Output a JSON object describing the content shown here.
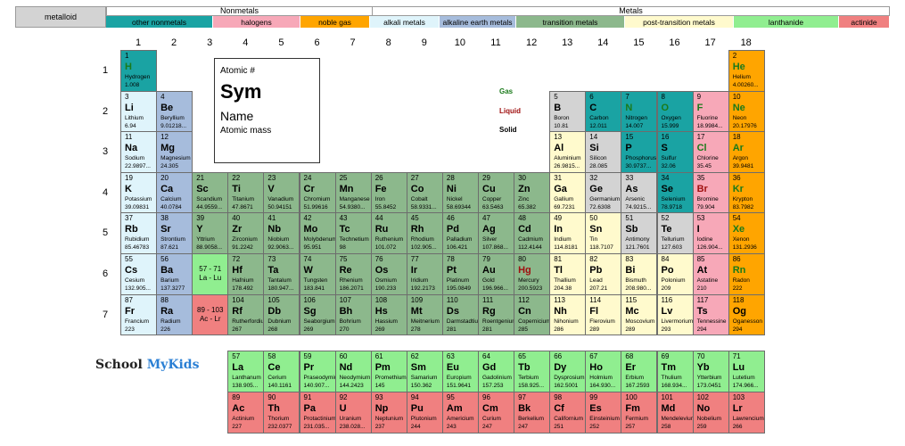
{
  "legend": {
    "metalloid": "metalloid",
    "nonmetals_title": "Nonmetals",
    "metals_title": "Metals",
    "categories": [
      {
        "id": "other-nonmetals",
        "label": "other nonmetals",
        "color": "#1aa3a3"
      },
      {
        "id": "halogens",
        "label": "halogens",
        "color": "#f7a8b8"
      },
      {
        "id": "noble-gas",
        "label": "noble gas",
        "color": "#ffa500"
      },
      {
        "id": "alkali-metals",
        "label": "alkali metals",
        "color": "#dff4fb"
      },
      {
        "id": "alkaline-earth-metals",
        "label": "alkaline earth metals",
        "color": "#a6bcdc"
      },
      {
        "id": "transition-metals",
        "label": "transition metals",
        "color": "#8cb88c"
      },
      {
        "id": "post-transition-metals",
        "label": "post-transition metals",
        "color": "#fffacd"
      },
      {
        "id": "lanthanide",
        "label": "lanthanide",
        "color": "#90ee90"
      },
      {
        "id": "actinide",
        "label": "actinide",
        "color": "#f08080"
      }
    ]
  },
  "colors": {
    "metalloid": "#d3d3d3",
    "nonmetal": "#1aa3a3",
    "halogen": "#f7a8b8",
    "noble": "#ffa500",
    "alkali": "#dff4fb",
    "alkaline": "#a6bcdc",
    "transition": "#8cb88c",
    "post": "#fffacd",
    "lanthanide": "#90ee90",
    "actinide": "#f08080"
  },
  "groups": [
    "1",
    "2",
    "3",
    "4",
    "5",
    "6",
    "7",
    "8",
    "9",
    "10",
    "11",
    "12",
    "13",
    "14",
    "15",
    "16",
    "17",
    "18"
  ],
  "periods": [
    "1",
    "2",
    "3",
    "4",
    "5",
    "6",
    "7"
  ],
  "key": {
    "atomic": "Atomic #",
    "sym": "Sym",
    "name": "Name",
    "mass": "Atomic mass"
  },
  "states": {
    "gas": "Gas",
    "liquid": "Liquid",
    "solid": "Solid"
  },
  "brand": {
    "part1": "School ",
    "part2": "MyKids"
  },
  "ranges": {
    "lanthanides": "57 - 71\nLa - Lu",
    "actinides": "89 - 103\nAc - Lr"
  },
  "elements": [
    {
      "n": "1",
      "s": "H",
      "name": "Hydrogen",
      "m": "1.008",
      "c": "nonmetal",
      "p": "gas",
      "g": 1,
      "r": 1
    },
    {
      "n": "2",
      "s": "He",
      "name": "Helium",
      "m": "4.00260...",
      "c": "noble",
      "p": "gas",
      "g": 18,
      "r": 1
    },
    {
      "n": "3",
      "s": "Li",
      "name": "Lithium",
      "m": "6.94",
      "c": "alkali",
      "g": 1,
      "r": 2
    },
    {
      "n": "4",
      "s": "Be",
      "name": "Beryllium",
      "m": "9.01218...",
      "c": "alkaline",
      "g": 2,
      "r": 2
    },
    {
      "n": "5",
      "s": "B",
      "name": "Boron",
      "m": "10.81",
      "c": "metalloid",
      "g": 13,
      "r": 2
    },
    {
      "n": "6",
      "s": "C",
      "name": "Carbon",
      "m": "12.011",
      "c": "nonmetal",
      "g": 14,
      "r": 2
    },
    {
      "n": "7",
      "s": "N",
      "name": "Nitrogen",
      "m": "14.007",
      "c": "nonmetal",
      "p": "gas",
      "g": 15,
      "r": 2
    },
    {
      "n": "8",
      "s": "O",
      "name": "Oxygen",
      "m": "15.999",
      "c": "nonmetal",
      "p": "gas",
      "g": 16,
      "r": 2
    },
    {
      "n": "9",
      "s": "F",
      "name": "Fluorine",
      "m": "18.9984...",
      "c": "halogen",
      "p": "gas",
      "g": 17,
      "r": 2
    },
    {
      "n": "10",
      "s": "Ne",
      "name": "Neon",
      "m": "20.17976",
      "c": "noble",
      "p": "gas",
      "g": 18,
      "r": 2
    },
    {
      "n": "11",
      "s": "Na",
      "name": "Sodium",
      "m": "22.9897...",
      "c": "alkali",
      "g": 1,
      "r": 3
    },
    {
      "n": "12",
      "s": "Mg",
      "name": "Magnesium",
      "m": "24.305",
      "c": "alkaline",
      "g": 2,
      "r": 3
    },
    {
      "n": "13",
      "s": "Al",
      "name": "Aluminium",
      "m": "26.9815...",
      "c": "post",
      "g": 13,
      "r": 3
    },
    {
      "n": "14",
      "s": "Si",
      "name": "Silicon",
      "m": "28.085",
      "c": "metalloid",
      "g": 14,
      "r": 3
    },
    {
      "n": "15",
      "s": "P",
      "name": "Phosphorus",
      "m": "30.9737...",
      "c": "nonmetal",
      "g": 15,
      "r": 3
    },
    {
      "n": "16",
      "s": "S",
      "name": "Sulfur",
      "m": "32.06",
      "c": "nonmetal",
      "g": 16,
      "r": 3
    },
    {
      "n": "17",
      "s": "Cl",
      "name": "Chlorine",
      "m": "35.45",
      "c": "halogen",
      "p": "gas",
      "g": 17,
      "r": 3
    },
    {
      "n": "18",
      "s": "Ar",
      "name": "Argon",
      "m": "39.9481",
      "c": "noble",
      "p": "gas",
      "g": 18,
      "r": 3
    },
    {
      "n": "19",
      "s": "K",
      "name": "Potassium",
      "m": "39.09831",
      "c": "alkali",
      "g": 1,
      "r": 4
    },
    {
      "n": "20",
      "s": "Ca",
      "name": "Calcium",
      "m": "40.0784",
      "c": "alkaline",
      "g": 2,
      "r": 4
    },
    {
      "n": "21",
      "s": "Sc",
      "name": "Scandium",
      "m": "44.9559...",
      "c": "transition",
      "g": 3,
      "r": 4
    },
    {
      "n": "22",
      "s": "Ti",
      "name": "Titanium",
      "m": "47.8671",
      "c": "transition",
      "g": 4,
      "r": 4
    },
    {
      "n": "23",
      "s": "V",
      "name": "Vanadium",
      "m": "50.94151",
      "c": "transition",
      "g": 5,
      "r": 4
    },
    {
      "n": "24",
      "s": "Cr",
      "name": "Chromium",
      "m": "51.99616",
      "c": "transition",
      "g": 6,
      "r": 4
    },
    {
      "n": "25",
      "s": "Mn",
      "name": "Manganese",
      "m": "54.9380...",
      "c": "transition",
      "g": 7,
      "r": 4
    },
    {
      "n": "26",
      "s": "Fe",
      "name": "Iron",
      "m": "55.8452",
      "c": "transition",
      "g": 8,
      "r": 4
    },
    {
      "n": "27",
      "s": "Co",
      "name": "Cobalt",
      "m": "58.9331...",
      "c": "transition",
      "g": 9,
      "r": 4
    },
    {
      "n": "28",
      "s": "Ni",
      "name": "Nickel",
      "m": "58.69344",
      "c": "transition",
      "g": 10,
      "r": 4
    },
    {
      "n": "29",
      "s": "Cu",
      "name": "Copper",
      "m": "63.5463",
      "c": "transition",
      "g": 11,
      "r": 4
    },
    {
      "n": "30",
      "s": "Zn",
      "name": "Zinc",
      "m": "65.382",
      "c": "transition",
      "g": 12,
      "r": 4
    },
    {
      "n": "31",
      "s": "Ga",
      "name": "Gallium",
      "m": "69.7231",
      "c": "post",
      "g": 13,
      "r": 4
    },
    {
      "n": "32",
      "s": "Ge",
      "name": "Germanium",
      "m": "72.6308",
      "c": "metalloid",
      "g": 14,
      "r": 4
    },
    {
      "n": "33",
      "s": "As",
      "name": "Arsenic",
      "m": "74.9215...",
      "c": "metalloid",
      "g": 15,
      "r": 4
    },
    {
      "n": "34",
      "s": "Se",
      "name": "Selenium",
      "m": "78.9718",
      "c": "nonmetal",
      "g": 16,
      "r": 4
    },
    {
      "n": "35",
      "s": "Br",
      "name": "Bromine",
      "m": "79.904",
      "c": "halogen",
      "p": "liquid",
      "g": 17,
      "r": 4
    },
    {
      "n": "36",
      "s": "Kr",
      "name": "Krypton",
      "m": "83.7982",
      "c": "noble",
      "p": "gas",
      "g": 18,
      "r": 4
    },
    {
      "n": "37",
      "s": "Rb",
      "name": "Rubidium",
      "m": "85.46783",
      "c": "alkali",
      "g": 1,
      "r": 5
    },
    {
      "n": "38",
      "s": "Sr",
      "name": "Strontium",
      "m": "87.621",
      "c": "alkaline",
      "g": 2,
      "r": 5
    },
    {
      "n": "39",
      "s": "Y",
      "name": "Yttrium",
      "m": "88.9058...",
      "c": "transition",
      "g": 3,
      "r": 5
    },
    {
      "n": "40",
      "s": "Zr",
      "name": "Zirconium",
      "m": "91.2242",
      "c": "transition",
      "g": 4,
      "r": 5
    },
    {
      "n": "41",
      "s": "Nb",
      "name": "Niobium",
      "m": "92.9063...",
      "c": "transition",
      "g": 5,
      "r": 5
    },
    {
      "n": "42",
      "s": "Mo",
      "name": "Molybdenum",
      "m": "95.951",
      "c": "transition",
      "g": 6,
      "r": 5
    },
    {
      "n": "43",
      "s": "Tc",
      "name": "Technetium",
      "m": "98",
      "c": "transition",
      "g": 7,
      "r": 5
    },
    {
      "n": "44",
      "s": "Ru",
      "name": "Ruthenium",
      "m": "101.072",
      "c": "transition",
      "g": 8,
      "r": 5
    },
    {
      "n": "45",
      "s": "Rh",
      "name": "Rhodium",
      "m": "102.905...",
      "c": "transition",
      "g": 9,
      "r": 5
    },
    {
      "n": "46",
      "s": "Pd",
      "name": "Palladium",
      "m": "106.421",
      "c": "transition",
      "g": 10,
      "r": 5
    },
    {
      "n": "47",
      "s": "Ag",
      "name": "Silver",
      "m": "107.868...",
      "c": "transition",
      "g": 11,
      "r": 5
    },
    {
      "n": "48",
      "s": "Cd",
      "name": "Cadmium",
      "m": "112.4144",
      "c": "transition",
      "g": 12,
      "r": 5
    },
    {
      "n": "49",
      "s": "In",
      "name": "Indium",
      "m": "114.8181",
      "c": "post",
      "g": 13,
      "r": 5
    },
    {
      "n": "50",
      "s": "Sn",
      "name": "Tin",
      "m": "118.7107",
      "c": "post",
      "g": 14,
      "r": 5
    },
    {
      "n": "51",
      "s": "Sb",
      "name": "Antimony",
      "m": "121.7601",
      "c": "metalloid",
      "g": 15,
      "r": 5
    },
    {
      "n": "52",
      "s": "Te",
      "name": "Tellurium",
      "m": "127.603",
      "c": "metalloid",
      "g": 16,
      "r": 5
    },
    {
      "n": "53",
      "s": "I",
      "name": "Iodine",
      "m": "126.904...",
      "c": "halogen",
      "g": 17,
      "r": 5
    },
    {
      "n": "54",
      "s": "Xe",
      "name": "Xenon",
      "m": "131.2936",
      "c": "noble",
      "p": "gas",
      "g": 18,
      "r": 5
    },
    {
      "n": "55",
      "s": "Cs",
      "name": "Cesium",
      "m": "132.905...",
      "c": "alkali",
      "g": 1,
      "r": 6
    },
    {
      "n": "56",
      "s": "Ba",
      "name": "Barium",
      "m": "137.3277",
      "c": "alkaline",
      "g": 2,
      "r": 6
    },
    {
      "n": "72",
      "s": "Hf",
      "name": "Hafnium",
      "m": "178.492",
      "c": "transition",
      "g": 4,
      "r": 6
    },
    {
      "n": "73",
      "s": "Ta",
      "name": "Tantalum",
      "m": "180.947...",
      "c": "transition",
      "g": 5,
      "r": 6
    },
    {
      "n": "74",
      "s": "W",
      "name": "Tungsten",
      "m": "183.841",
      "c": "transition",
      "g": 6,
      "r": 6
    },
    {
      "n": "75",
      "s": "Re",
      "name": "Rhenium",
      "m": "186.2071",
      "c": "transition",
      "g": 7,
      "r": 6
    },
    {
      "n": "76",
      "s": "Os",
      "name": "Osmium",
      "m": "190.233",
      "c": "transition",
      "g": 8,
      "r": 6
    },
    {
      "n": "77",
      "s": "Ir",
      "name": "Iridium",
      "m": "192.2173",
      "c": "transition",
      "g": 9,
      "r": 6
    },
    {
      "n": "78",
      "s": "Pt",
      "name": "Platinum",
      "m": "195.0849",
      "c": "transition",
      "g": 10,
      "r": 6
    },
    {
      "n": "79",
      "s": "Au",
      "name": "Gold",
      "m": "196.966...",
      "c": "transition",
      "g": 11,
      "r": 6
    },
    {
      "n": "80",
      "s": "Hg",
      "name": "Mercury",
      "m": "200.5923",
      "c": "transition",
      "p": "liquid",
      "g": 12,
      "r": 6
    },
    {
      "n": "81",
      "s": "Tl",
      "name": "Thallium",
      "m": "204.38",
      "c": "post",
      "g": 13,
      "r": 6
    },
    {
      "n": "82",
      "s": "Pb",
      "name": "Lead",
      "m": "207.21",
      "c": "post",
      "g": 14,
      "r": 6
    },
    {
      "n": "83",
      "s": "Bi",
      "name": "Bismuth",
      "m": "208.980...",
      "c": "post",
      "g": 15,
      "r": 6
    },
    {
      "n": "84",
      "s": "Po",
      "name": "Polonium",
      "m": "209",
      "c": "post",
      "g": 16,
      "r": 6
    },
    {
      "n": "85",
      "s": "At",
      "name": "Astatine",
      "m": "210",
      "c": "halogen",
      "g": 17,
      "r": 6
    },
    {
      "n": "86",
      "s": "Rn",
      "name": "Radon",
      "m": "222",
      "c": "noble",
      "p": "gas",
      "g": 18,
      "r": 6
    },
    {
      "n": "87",
      "s": "Fr",
      "name": "Francium",
      "m": "223",
      "c": "alkali",
      "g": 1,
      "r": 7
    },
    {
      "n": "88",
      "s": "Ra",
      "name": "Radium",
      "m": "226",
      "c": "alkaline",
      "g": 2,
      "r": 7
    },
    {
      "n": "104",
      "s": "Rf",
      "name": "Rutherfordium",
      "m": "267",
      "c": "transition",
      "g": 4,
      "r": 7
    },
    {
      "n": "105",
      "s": "Db",
      "name": "Dubnium",
      "m": "268",
      "c": "transition",
      "g": 5,
      "r": 7
    },
    {
      "n": "106",
      "s": "Sg",
      "name": "Seaborgium",
      "m": "269",
      "c": "transition",
      "g": 6,
      "r": 7
    },
    {
      "n": "107",
      "s": "Bh",
      "name": "Bohrium",
      "m": "270",
      "c": "transition",
      "g": 7,
      "r": 7
    },
    {
      "n": "108",
      "s": "Hs",
      "name": "Hassium",
      "m": "269",
      "c": "transition",
      "g": 8,
      "r": 7
    },
    {
      "n": "109",
      "s": "Mt",
      "name": "Meitnerium",
      "m": "278",
      "c": "transition",
      "g": 9,
      "r": 7
    },
    {
      "n": "110",
      "s": "Ds",
      "name": "Darmstadtium",
      "m": "281",
      "c": "transition",
      "g": 10,
      "r": 7
    },
    {
      "n": "111",
      "s": "Rg",
      "name": "Roentgenium",
      "m": "281",
      "c": "transition",
      "g": 11,
      "r": 7
    },
    {
      "n": "112",
      "s": "Cn",
      "name": "Copernicium",
      "m": "285",
      "c": "transition",
      "g": 12,
      "r": 7
    },
    {
      "n": "113",
      "s": "Nh",
      "name": "Nihonium",
      "m": "286",
      "c": "post",
      "g": 13,
      "r": 7
    },
    {
      "n": "114",
      "s": "Fl",
      "name": "Flerovium",
      "m": "289",
      "c": "post",
      "g": 14,
      "r": 7
    },
    {
      "n": "115",
      "s": "Mc",
      "name": "Moscovium",
      "m": "289",
      "c": "post",
      "g": 15,
      "r": 7
    },
    {
      "n": "116",
      "s": "Lv",
      "name": "Livermorium",
      "m": "293",
      "c": "post",
      "g": 16,
      "r": 7
    },
    {
      "n": "117",
      "s": "Ts",
      "name": "Tennessine",
      "m": "294",
      "c": "halogen",
      "g": 17,
      "r": 7
    },
    {
      "n": "118",
      "s": "Og",
      "name": "Oganesson",
      "m": "294",
      "c": "noble",
      "g": 18,
      "r": 7
    },
    {
      "n": "57",
      "s": "La",
      "name": "Lanthanum",
      "m": "138.905...",
      "c": "lanthanide",
      "g": 4,
      "r": 9
    },
    {
      "n": "58",
      "s": "Ce",
      "name": "Cerium",
      "m": "140.1161",
      "c": "lanthanide",
      "g": 5,
      "r": 9
    },
    {
      "n": "59",
      "s": "Pr",
      "name": "Praseodymium",
      "m": "140.907...",
      "c": "lanthanide",
      "g": 6,
      "r": 9
    },
    {
      "n": "60",
      "s": "Nd",
      "name": "Neodymium",
      "m": "144.2423",
      "c": "lanthanide",
      "g": 7,
      "r": 9
    },
    {
      "n": "61",
      "s": "Pm",
      "name": "Promethium",
      "m": "145",
      "c": "lanthanide",
      "g": 8,
      "r": 9
    },
    {
      "n": "62",
      "s": "Sm",
      "name": "Samarium",
      "m": "150.362",
      "c": "lanthanide",
      "g": 9,
      "r": 9
    },
    {
      "n": "63",
      "s": "Eu",
      "name": "Europium",
      "m": "151.9641",
      "c": "lanthanide",
      "g": 10,
      "r": 9
    },
    {
      "n": "64",
      "s": "Gd",
      "name": "Gadolinium",
      "m": "157.253",
      "c": "lanthanide",
      "g": 11,
      "r": 9
    },
    {
      "n": "65",
      "s": "Tb",
      "name": "Terbium",
      "m": "158.925...",
      "c": "lanthanide",
      "g": 12,
      "r": 9
    },
    {
      "n": "66",
      "s": "Dy",
      "name": "Dysprosium",
      "m": "162.5001",
      "c": "lanthanide",
      "g": 13,
      "r": 9
    },
    {
      "n": "67",
      "s": "Ho",
      "name": "Holmium",
      "m": "164.930...",
      "c": "lanthanide",
      "g": 14,
      "r": 9
    },
    {
      "n": "68",
      "s": "Er",
      "name": "Erbium",
      "m": "167.2593",
      "c": "lanthanide",
      "g": 15,
      "r": 9
    },
    {
      "n": "69",
      "s": "Tm",
      "name": "Thulium",
      "m": "168.934...",
      "c": "lanthanide",
      "g": 16,
      "r": 9
    },
    {
      "n": "70",
      "s": "Yb",
      "name": "Ytterbium",
      "m": "173.0451",
      "c": "lanthanide",
      "g": 17,
      "r": 9
    },
    {
      "n": "71",
      "s": "Lu",
      "name": "Lutetium",
      "m": "174.966...",
      "c": "lanthanide",
      "g": 18,
      "r": 9
    },
    {
      "n": "89",
      "s": "Ac",
      "name": "Actinium",
      "m": "227",
      "c": "actinide",
      "g": 4,
      "r": 10
    },
    {
      "n": "90",
      "s": "Th",
      "name": "Thorium",
      "m": "232.0377",
      "c": "actinide",
      "g": 5,
      "r": 10
    },
    {
      "n": "91",
      "s": "Pa",
      "name": "Protactinium",
      "m": "231.035...",
      "c": "actinide",
      "g": 6,
      "r": 10
    },
    {
      "n": "92",
      "s": "U",
      "name": "Uranium",
      "m": "238.028...",
      "c": "actinide",
      "g": 7,
      "r": 10
    },
    {
      "n": "93",
      "s": "Np",
      "name": "Neptunium",
      "m": "237",
      "c": "actinide",
      "g": 8,
      "r": 10
    },
    {
      "n": "94",
      "s": "Pu",
      "name": "Plutonium",
      "m": "244",
      "c": "actinide",
      "g": 9,
      "r": 10
    },
    {
      "n": "95",
      "s": "Am",
      "name": "Americium",
      "m": "243",
      "c": "actinide",
      "g": 10,
      "r": 10
    },
    {
      "n": "96",
      "s": "Cm",
      "name": "Curium",
      "m": "247",
      "c": "actinide",
      "g": 11,
      "r": 10
    },
    {
      "n": "97",
      "s": "Bk",
      "name": "Berkelium",
      "m": "247",
      "c": "actinide",
      "g": 12,
      "r": 10
    },
    {
      "n": "98",
      "s": "Cf",
      "name": "Californium",
      "m": "251",
      "c": "actinide",
      "g": 13,
      "r": 10
    },
    {
      "n": "99",
      "s": "Es",
      "name": "Einsteinium",
      "m": "252",
      "c": "actinide",
      "g": 14,
      "r": 10
    },
    {
      "n": "100",
      "s": "Fm",
      "name": "Fermium",
      "m": "257",
      "c": "actinide",
      "g": 15,
      "r": 10
    },
    {
      "n": "101",
      "s": "Md",
      "name": "Mendelevium",
      "m": "258",
      "c": "actinide",
      "g": 16,
      "r": 10
    },
    {
      "n": "102",
      "s": "No",
      "name": "Nobelium",
      "m": "259",
      "c": "actinide",
      "g": 17,
      "r": 10
    },
    {
      "n": "103",
      "s": "Lr",
      "name": "Lawrencium",
      "m": "266",
      "c": "actinide",
      "g": 18,
      "r": 10
    }
  ]
}
